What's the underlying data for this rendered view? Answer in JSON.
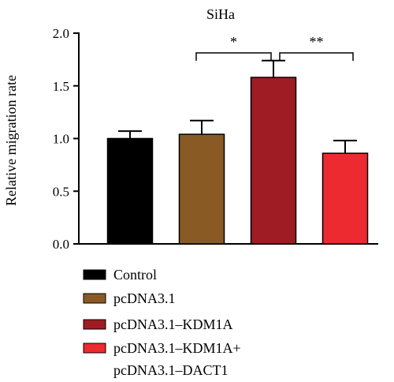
{
  "chart_data": {
    "type": "bar",
    "title": "SiHa",
    "ylabel": "Relative migration rate",
    "xlabel": "",
    "ylim": [
      0,
      2.0
    ],
    "yticks": [
      "0.0",
      "0.5",
      "1.0",
      "1.5",
      "2.0"
    ],
    "yticks_values": [
      0,
      0.5,
      1.0,
      1.5,
      2.0
    ],
    "grid": false,
    "legend_position": "bottom",
    "categories": [
      "Control",
      "pcDNA3.1",
      "pcDNA3.1–KDM1A",
      "pcDNA3.1–KDM1A+ pcDNA3.1–DACT1"
    ],
    "values": [
      1.0,
      1.04,
      1.58,
      0.86
    ],
    "errors": [
      0.07,
      0.13,
      0.16,
      0.12
    ],
    "colors": [
      "#000000",
      "#8a5a24",
      "#a01c24",
      "#ec2a2f"
    ],
    "legend": [
      {
        "lines": [
          "Control"
        ],
        "color": "#000000"
      },
      {
        "lines": [
          "pcDNA3.1"
        ],
        "color": "#8a5a24"
      },
      {
        "lines": [
          "pcDNA3.1–KDM1A"
        ],
        "color": "#a01c24"
      },
      {
        "lines": [
          "pcDNA3.1–KDM1A+",
          "pcDNA3.1–DACT1"
        ],
        "color": "#ec2a2f"
      }
    ],
    "significance": [
      {
        "from": 1,
        "to": 2,
        "label": "*"
      },
      {
        "from": 2,
        "to": 3,
        "label": "**"
      }
    ]
  }
}
